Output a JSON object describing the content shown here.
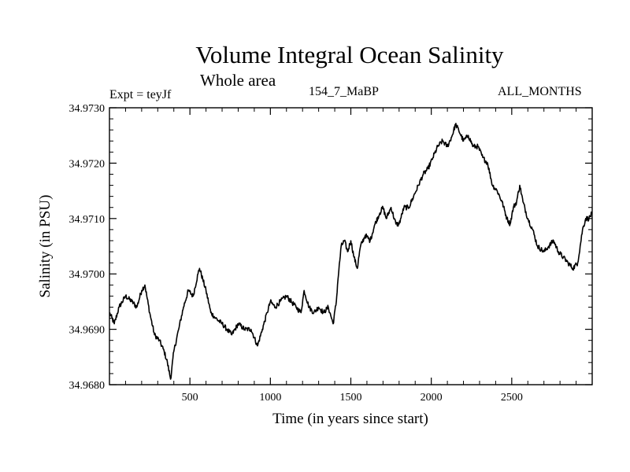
{
  "chart_data": {
    "type": "line",
    "title": "Volume Integral Ocean Salinity",
    "subtitle": "Whole area",
    "experiment_label": "Expt = teyJf",
    "run_label": "154_7_MaBP",
    "period_label": "ALL_MONTHS",
    "xlabel": "Time (in years since start)",
    "ylabel": "Salinity (in PSU)",
    "xlim": [
      0,
      3000
    ],
    "ylim": [
      34.968,
      34.973
    ],
    "x_ticks": [
      500,
      1000,
      1500,
      2000,
      2500
    ],
    "x_tick_labels": [
      "500",
      "1000",
      "1500",
      "2000",
      "2500"
    ],
    "y_ticks": [
      34.968,
      34.969,
      34.97,
      34.971,
      34.972,
      34.973
    ],
    "y_tick_labels": [
      "34.9680",
      "34.9690",
      "34.9700",
      "34.9710",
      "34.9720",
      "34.9730"
    ],
    "grid": false,
    "series": [
      {
        "name": "Salinity",
        "color": "#000000",
        "x": [
          0,
          30,
          60,
          100,
          140,
          170,
          200,
          220,
          250,
          280,
          310,
          340,
          360,
          380,
          400,
          430,
          460,
          490,
          520,
          550,
          560,
          580,
          600,
          630,
          660,
          700,
          730,
          760,
          800,
          840,
          880,
          920,
          950,
          980,
          1000,
          1030,
          1060,
          1100,
          1130,
          1160,
          1190,
          1210,
          1240,
          1270,
          1300,
          1330,
          1360,
          1390,
          1410,
          1420,
          1440,
          1460,
          1480,
          1500,
          1520,
          1540,
          1560,
          1590,
          1620,
          1650,
          1680,
          1700,
          1720,
          1750,
          1780,
          1800,
          1830,
          1860,
          1890,
          1920,
          1950,
          1980,
          2010,
          2040,
          2070,
          2100,
          2130,
          2150,
          2170,
          2200,
          2230,
          2260,
          2290,
          2320,
          2350,
          2380,
          2410,
          2440,
          2470,
          2490,
          2510,
          2530,
          2550,
          2570,
          2600,
          2630,
          2660,
          2700,
          2730,
          2760,
          2790,
          2820,
          2850,
          2880,
          2910,
          2940,
          2960,
          2980,
          3000
        ],
        "values": [
          34.9693,
          34.9691,
          34.9694,
          34.9696,
          34.9695,
          34.9694,
          34.9697,
          34.9698,
          34.9693,
          34.9689,
          34.9688,
          34.9686,
          34.9684,
          34.9681,
          34.9686,
          34.969,
          34.9694,
          34.9697,
          34.9696,
          34.97,
          34.9701,
          34.9699,
          34.9697,
          34.9693,
          34.9692,
          34.9691,
          34.969,
          34.9689,
          34.9691,
          34.969,
          34.969,
          34.9687,
          34.969,
          34.9693,
          34.9695,
          34.9694,
          34.9695,
          34.9696,
          34.9695,
          34.9694,
          34.9693,
          34.9697,
          34.9694,
          34.9693,
          34.9694,
          34.9693,
          34.9694,
          34.9691,
          34.9695,
          34.9699,
          34.9705,
          34.9706,
          34.9704,
          34.9706,
          34.9703,
          34.9701,
          34.9705,
          34.9707,
          34.9706,
          34.9709,
          34.9711,
          34.9712,
          34.971,
          34.9712,
          34.9709,
          34.9709,
          34.9712,
          34.9712,
          34.9714,
          34.9716,
          34.9718,
          34.9719,
          34.9721,
          34.9723,
          34.9724,
          34.9723,
          34.9725,
          34.9727,
          34.9726,
          34.9724,
          34.9725,
          34.9723,
          34.9723,
          34.9721,
          34.972,
          34.9716,
          34.9715,
          34.9713,
          34.971,
          34.9709,
          34.9712,
          34.9713,
          34.9716,
          34.9713,
          34.971,
          34.9708,
          34.9705,
          34.9704,
          34.9705,
          34.9706,
          34.9704,
          34.9703,
          34.9702,
          34.9701,
          34.9702,
          34.9708,
          34.971,
          34.971,
          34.9711
        ]
      }
    ]
  }
}
